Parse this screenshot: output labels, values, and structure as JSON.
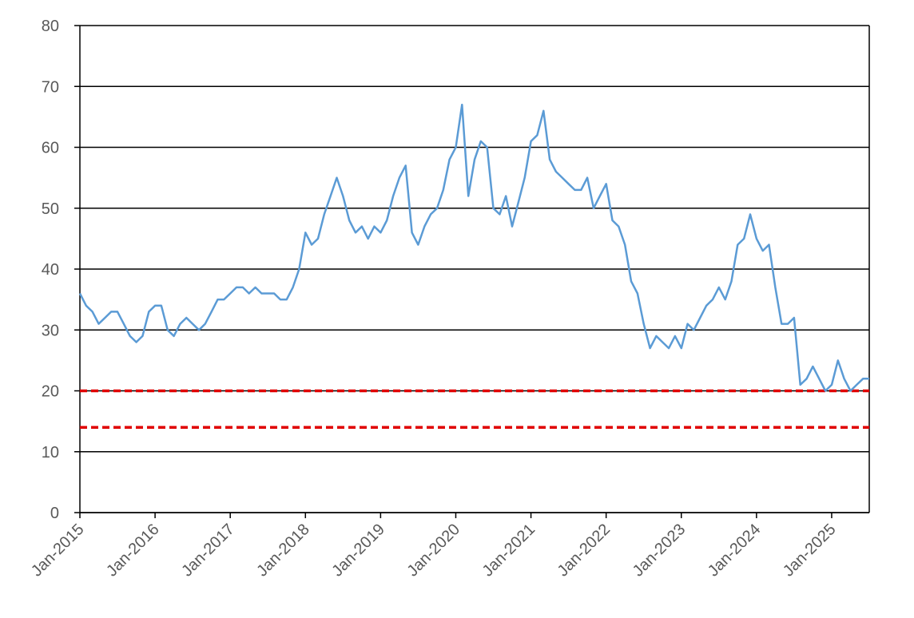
{
  "chart_data": {
    "type": "line",
    "x": [
      "2015-01",
      "2015-02",
      "2015-03",
      "2015-04",
      "2015-05",
      "2015-06",
      "2015-07",
      "2015-08",
      "2015-09",
      "2015-10",
      "2015-11",
      "2015-12",
      "2016-01",
      "2016-02",
      "2016-03",
      "2016-04",
      "2016-05",
      "2016-06",
      "2016-07",
      "2016-08",
      "2016-09",
      "2016-10",
      "2016-11",
      "2016-12",
      "2017-01",
      "2017-02",
      "2017-03",
      "2017-04",
      "2017-05",
      "2017-06",
      "2017-07",
      "2017-08",
      "2017-09",
      "2017-10",
      "2017-11",
      "2017-12",
      "2018-01",
      "2018-02",
      "2018-03",
      "2018-04",
      "2018-05",
      "2018-06",
      "2018-07",
      "2018-08",
      "2018-09",
      "2018-10",
      "2018-11",
      "2018-12",
      "2019-01",
      "2019-02",
      "2019-03",
      "2019-04",
      "2019-05",
      "2019-06",
      "2019-07",
      "2019-08",
      "2019-09",
      "2019-10",
      "2019-11",
      "2019-12",
      "2020-01",
      "2020-02",
      "2020-03",
      "2020-04",
      "2020-05",
      "2020-06",
      "2020-07",
      "2020-08",
      "2020-09",
      "2020-10",
      "2020-11",
      "2020-12",
      "2021-01",
      "2021-02",
      "2021-03",
      "2021-04",
      "2021-05",
      "2021-06",
      "2021-07",
      "2021-08",
      "2021-09",
      "2021-10",
      "2021-11",
      "2021-12",
      "2022-01",
      "2022-02",
      "2022-03",
      "2022-04",
      "2022-05",
      "2022-06",
      "2022-07",
      "2022-08",
      "2022-09",
      "2022-10",
      "2022-11",
      "2022-12",
      "2023-01",
      "2023-02",
      "2023-03",
      "2023-04",
      "2023-05",
      "2023-06",
      "2023-07",
      "2023-08",
      "2023-09",
      "2023-10",
      "2023-11",
      "2023-12",
      "2024-01",
      "2024-02",
      "2024-03",
      "2024-04",
      "2024-05",
      "2024-06",
      "2024-07",
      "2024-08",
      "2024-09",
      "2024-10",
      "2024-11",
      "2024-12",
      "2025-01",
      "2025-02",
      "2025-03",
      "2025-04",
      "2025-05",
      "2025-06",
      "2025-07"
    ],
    "series": [
      {
        "color": "#5b9bd5",
        "values": [
          36,
          34,
          33,
          31,
          32,
          33,
          33,
          31,
          29,
          28,
          29,
          33,
          34,
          34,
          30,
          29,
          31,
          32,
          31,
          30,
          31,
          33,
          35,
          35,
          36,
          37,
          37,
          36,
          37,
          36,
          36,
          36,
          35,
          35,
          37,
          40,
          46,
          44,
          45,
          49,
          52,
          55,
          52,
          48,
          46,
          47,
          45,
          47,
          46,
          48,
          52,
          55,
          57,
          46,
          44,
          47,
          49,
          50,
          53,
          58,
          60,
          67,
          52,
          58,
          61,
          60,
          50,
          49,
          52,
          47,
          51,
          55,
          61,
          62,
          66,
          58,
          56,
          55,
          54,
          53,
          53,
          55,
          50,
          52,
          54,
          48,
          47,
          44,
          38,
          36,
          31,
          27,
          29,
          28,
          27,
          29,
          27,
          31,
          30,
          32,
          34,
          35,
          37,
          35,
          38,
          44,
          45,
          49,
          45,
          43,
          44,
          37,
          31,
          31,
          32,
          21,
          22,
          24,
          22,
          20,
          21,
          25,
          22,
          20,
          21,
          22,
          22
        ]
      }
    ],
    "reference_lines": [
      {
        "value": 20,
        "color": "#e00000"
      },
      {
        "value": 14,
        "color": "#e00000"
      }
    ],
    "xlim": [
      "2015-01",
      "2025-07"
    ],
    "xticks": [
      {
        "value": "2015-01",
        "label": "Jan-2015"
      },
      {
        "value": "2016-01",
        "label": "Jan-2016"
      },
      {
        "value": "2017-01",
        "label": "Jan-2017"
      },
      {
        "value": "2018-01",
        "label": "Jan-2018"
      },
      {
        "value": "2019-01",
        "label": "Jan-2019"
      },
      {
        "value": "2020-01",
        "label": "Jan-2020"
      },
      {
        "value": "2021-01",
        "label": "Jan-2021"
      },
      {
        "value": "2022-01",
        "label": "Jan-2022"
      },
      {
        "value": "2023-01",
        "label": "Jan-2023"
      },
      {
        "value": "2024-01",
        "label": "Jan-2024"
      },
      {
        "value": "2025-01",
        "label": "Jan-2025"
      }
    ],
    "ylim": [
      0,
      80
    ],
    "yticks": [
      0,
      10,
      20,
      30,
      40,
      50,
      60,
      70,
      80
    ],
    "grid": true
  }
}
